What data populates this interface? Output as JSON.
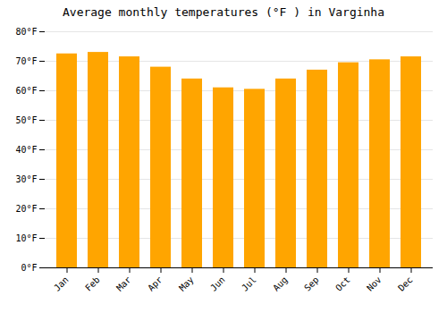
{
  "chart_data": {
    "type": "bar",
    "title": "Average monthly temperatures (°F ) in Varginha",
    "categories": [
      "Jan",
      "Feb",
      "Mar",
      "Apr",
      "May",
      "Jun",
      "Jul",
      "Aug",
      "Sep",
      "Oct",
      "Nov",
      "Dec"
    ],
    "values": [
      72.5,
      73.0,
      71.5,
      68.0,
      64.0,
      61.0,
      60.5,
      64.0,
      67.0,
      69.5,
      70.5,
      71.5
    ],
    "color": "#FFA500",
    "ylim": [
      0,
      80
    ],
    "yticks": [
      {
        "value": 0,
        "label": "0°F"
      },
      {
        "value": 10,
        "label": "10°F"
      },
      {
        "value": 20,
        "label": "20°F"
      },
      {
        "value": 30,
        "label": "30°F"
      },
      {
        "value": 40,
        "label": "40°F"
      },
      {
        "value": 50,
        "label": "50°F"
      },
      {
        "value": 60,
        "label": "60°F"
      },
      {
        "value": 70,
        "label": "70°F"
      },
      {
        "value": 80,
        "label": "80°F"
      }
    ],
    "grid": true
  }
}
